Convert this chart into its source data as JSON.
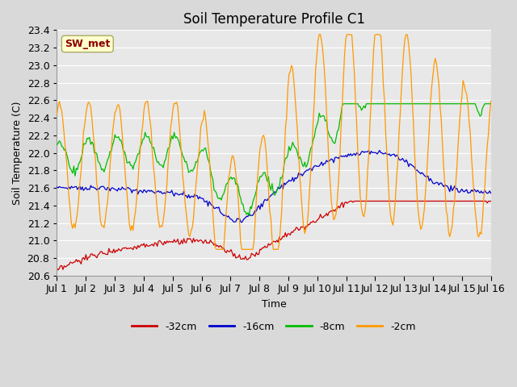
{
  "title": "Soil Temperature Profile C1",
  "xlabel": "Time",
  "ylabel": "Soil Temperature (C)",
  "ylim": [
    20.6,
    23.4
  ],
  "yticks": [
    20.6,
    20.8,
    21.0,
    21.2,
    21.4,
    21.6,
    21.8,
    22.0,
    22.2,
    22.4,
    22.6,
    22.8,
    23.0,
    23.2,
    23.4
  ],
  "xtick_labels": [
    "Jul 1",
    "Jul 2",
    "Jul 3",
    "Jul 4",
    "Jul 5",
    "Jul 6",
    "Jul 7",
    "Jul 8",
    "Jul 9",
    "Jul 10",
    "Jul 11",
    "Jul 12",
    "Jul 13",
    "Jul 14",
    "Jul 15",
    "Jul 16"
  ],
  "colors": {
    "32cm": "#cc0000",
    "16cm": "#0000cc",
    "8cm": "#00bb00",
    "2cm": "#ff9900"
  },
  "legend_labels": [
    "-32cm",
    "-16cm",
    "-8cm",
    "-2cm"
  ],
  "annotation_text": "SW_met",
  "annotation_color": "#8b0000",
  "annotation_bg": "#ffffcc",
  "plot_bg": "#e8e8e8",
  "grid_color": "#ffffff",
  "title_fontsize": 12,
  "axis_fontsize": 9,
  "tick_fontsize": 9
}
